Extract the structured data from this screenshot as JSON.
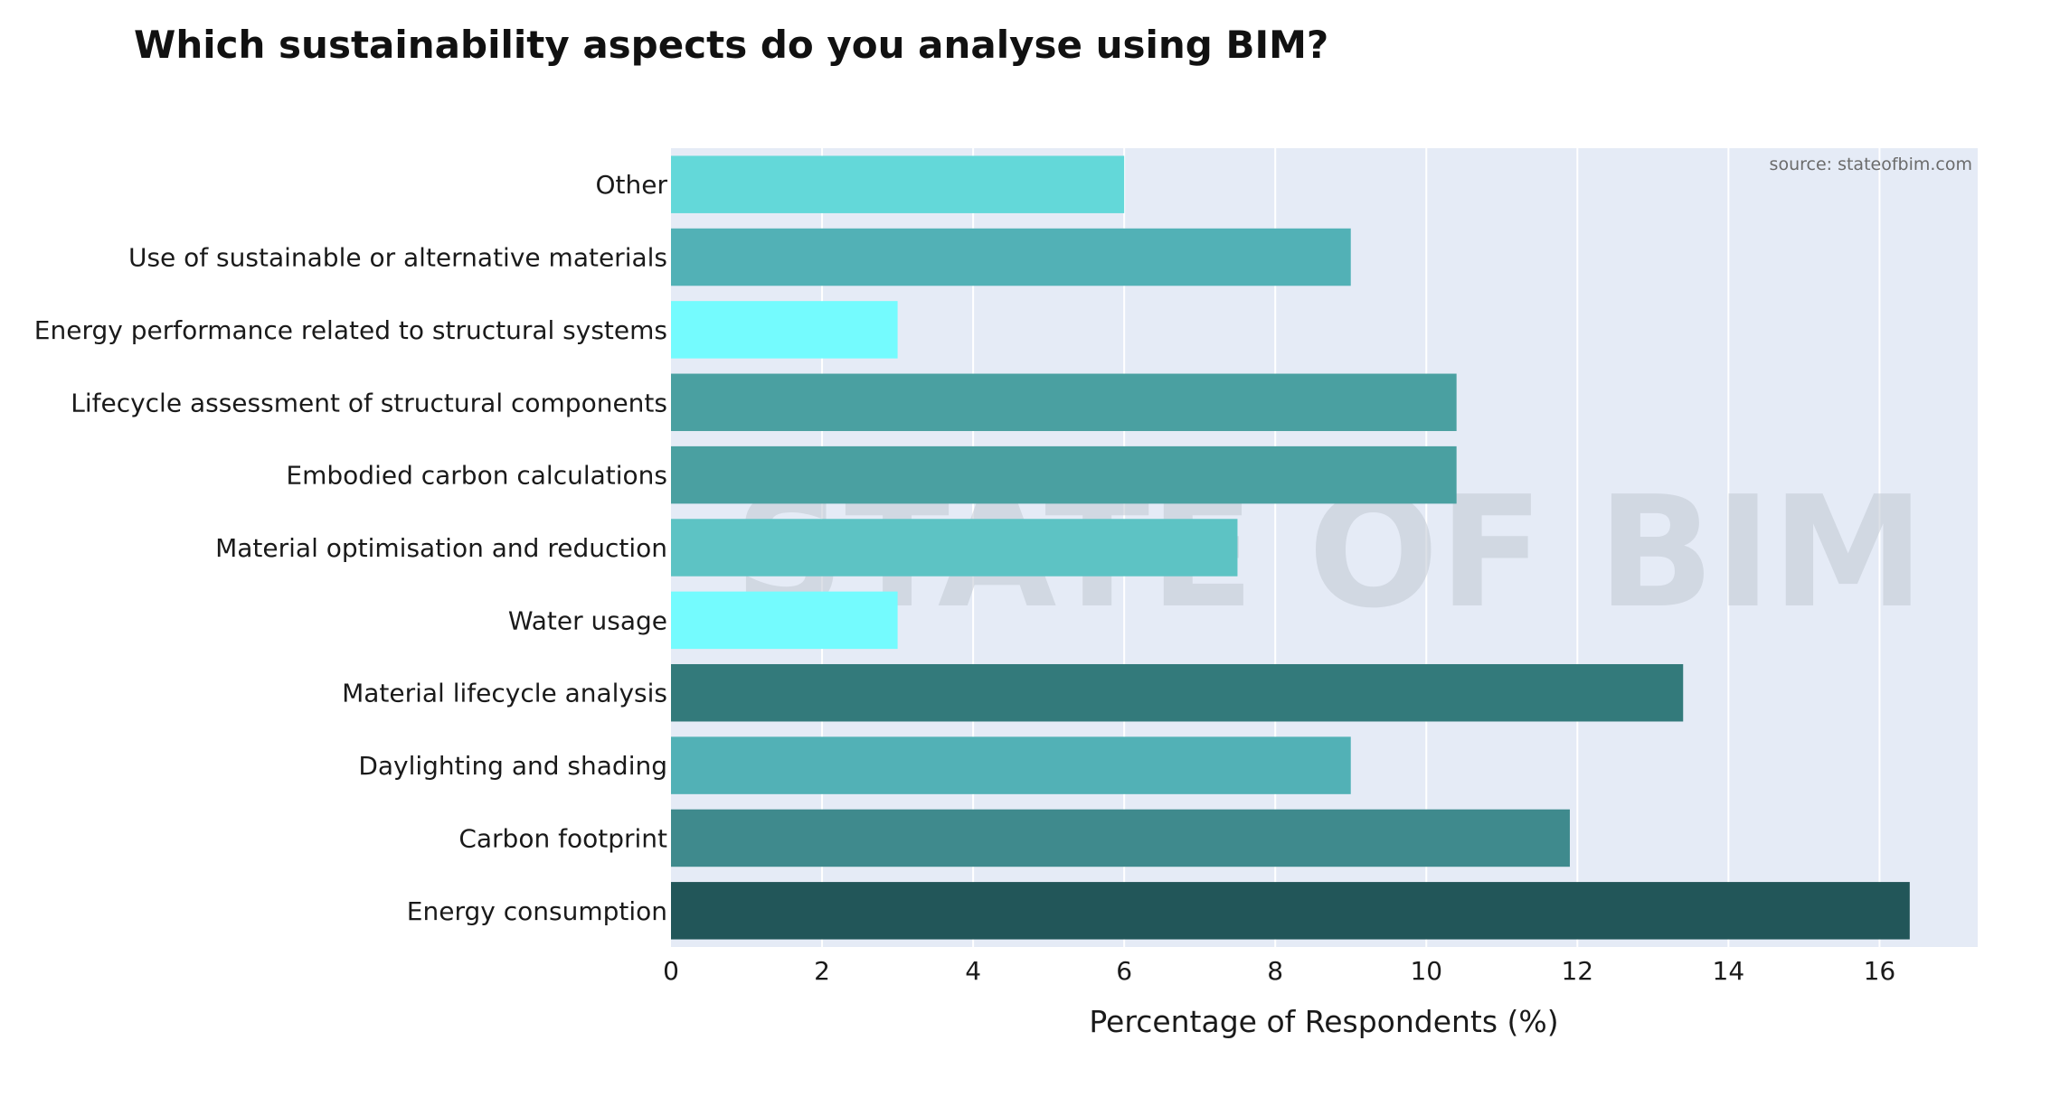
{
  "chart_data": {
    "type": "bar",
    "orientation": "horizontal",
    "title": "Which sustainability aspects do you analyse using BIM?",
    "xlabel": "Percentage of Respondents (%)",
    "ylabel": "",
    "source": "source: stateofbim.com",
    "watermark": "STATE OF BIM",
    "xlim": [
      0,
      17.3
    ],
    "xticks": [
      0,
      2,
      4,
      6,
      8,
      10,
      12,
      14,
      16
    ],
    "grid": true,
    "plot_background": "#e5ebf6",
    "categories": [
      "Energy consumption",
      "Carbon footprint",
      "Daylighting and shading",
      "Material lifecycle analysis",
      "Water usage",
      "Material optimisation and reduction",
      "Embodied carbon calculations",
      "Lifecycle assessment of structural components",
      "Energy performance related to structural systems",
      "Use of sustainable or alternative materials",
      "Other"
    ],
    "values": [
      16.4,
      11.9,
      9.0,
      13.4,
      3.0,
      7.5,
      10.4,
      10.4,
      3.0,
      9.0,
      6.0
    ],
    "colors": [
      "#225659",
      "#3f8a8d",
      "#52b1b6",
      "#337a7b",
      "#74fbfe",
      "#5dc3c4",
      "#4aa0a1",
      "#4aa0a1",
      "#74fbfe",
      "#52b1b6",
      "#63d8d9"
    ]
  }
}
